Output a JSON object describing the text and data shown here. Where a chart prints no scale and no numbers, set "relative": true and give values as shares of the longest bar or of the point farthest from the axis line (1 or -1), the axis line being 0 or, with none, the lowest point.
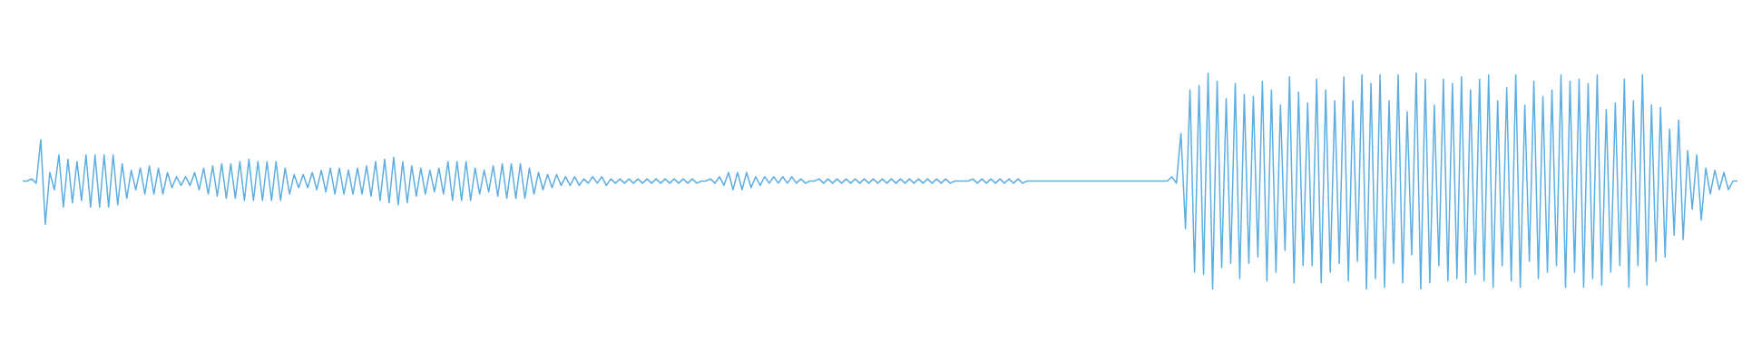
{
  "chart_data": {
    "type": "line",
    "relative": true,
    "color": "#5dade2",
    "categories": [
      null,
      null,
      null,
      null,
      null,
      null,
      null,
      null,
      null,
      null,
      null,
      null,
      null,
      null,
      null,
      null,
      null,
      null,
      null,
      null,
      null,
      null,
      null,
      null,
      null,
      null,
      null,
      null,
      null,
      null,
      null,
      null,
      null,
      null,
      null,
      null,
      null,
      null,
      null,
      null,
      null,
      null,
      null,
      null,
      null,
      null,
      null,
      null,
      null,
      null,
      null,
      null,
      null,
      null,
      null,
      null,
      null,
      null,
      null,
      null,
      null,
      null,
      null,
      null,
      null,
      null,
      null,
      null,
      null,
      null,
      null,
      null,
      null,
      null,
      null,
      null,
      null,
      null,
      null,
      null,
      null,
      null,
      null,
      null,
      null,
      null,
      null,
      null,
      null,
      null,
      null,
      null,
      null,
      null,
      null,
      null,
      null,
      null,
      null,
      null,
      null,
      null,
      null,
      null,
      null,
      null,
      null,
      null,
      null,
      null,
      null,
      null,
      null,
      null,
      null,
      null,
      null,
      null,
      null,
      null,
      null,
      null,
      null,
      null,
      null,
      null,
      null,
      null,
      null,
      null,
      null,
      null,
      null,
      null,
      null,
      null,
      null,
      null,
      null,
      null,
      null,
      null,
      null,
      null,
      null,
      null,
      null,
      null,
      null,
      null,
      null,
      null,
      null,
      null,
      null,
      null,
      null,
      null,
      null,
      null,
      null,
      null,
      null,
      null,
      null,
      null,
      null,
      null,
      null,
      null,
      null,
      null,
      null,
      null,
      null,
      null,
      null,
      null,
      null,
      null,
      null,
      null,
      null,
      null,
      null,
      null,
      null,
      null,
      null,
      null,
      null,
      null,
      null,
      null,
      null,
      null,
      null,
      null,
      null,
      null,
      null,
      null,
      null,
      null,
      null,
      null,
      null,
      null,
      null,
      null,
      null,
      null,
      null,
      null,
      null,
      null,
      null,
      null,
      null,
      null,
      null,
      null,
      null,
      null,
      null,
      null,
      null,
      null,
      null,
      null,
      null,
      null,
      null,
      null,
      null,
      null,
      null,
      null,
      null,
      null,
      null,
      null,
      null,
      null,
      null,
      null,
      null,
      null,
      null,
      null,
      null,
      null,
      null,
      null,
      null,
      null,
      null,
      null,
      null,
      null,
      null,
      null,
      null,
      null,
      null,
      null,
      null,
      null,
      null,
      null,
      null,
      null,
      null,
      null,
      null,
      null,
      null,
      null,
      null,
      null,
      null,
      null,
      null,
      null,
      null,
      null,
      null,
      null,
      null,
      null,
      null,
      null,
      null,
      null,
      null,
      null,
      null,
      null,
      null,
      null,
      null,
      null,
      null,
      null,
      null,
      null,
      null,
      null,
      null,
      null,
      null,
      null,
      null,
      null,
      null,
      null,
      null,
      null,
      null,
      null,
      null,
      null,
      null,
      null,
      null,
      null,
      null,
      null,
      null,
      null,
      null,
      null,
      null,
      null,
      null,
      null,
      null,
      null,
      null,
      null,
      null,
      null,
      null,
      null,
      null,
      null,
      null,
      null,
      null,
      null,
      null,
      null,
      null,
      null,
      null,
      null,
      null,
      null,
      null,
      null,
      null,
      null,
      null,
      null,
      null,
      null,
      null,
      null,
      null,
      null,
      null,
      null,
      null,
      null,
      null,
      null,
      null,
      null,
      null,
      null
    ],
    "values": [
      0.5,
      0.5,
      0.51,
      0.49,
      0.69,
      0.3,
      0.54,
      0.46,
      0.62,
      0.38,
      0.6,
      0.4,
      0.59,
      0.41,
      0.62,
      0.38,
      0.62,
      0.38,
      0.62,
      0.38,
      0.62,
      0.39,
      0.58,
      0.42,
      0.55,
      0.46,
      0.56,
      0.44,
      0.57,
      0.44,
      0.56,
      0.44,
      0.54,
      0.47,
      0.52,
      0.48,
      0.52,
      0.48,
      0.54,
      0.46,
      0.56,
      0.44,
      0.57,
      0.43,
      0.58,
      0.42,
      0.58,
      0.42,
      0.59,
      0.41,
      0.6,
      0.41,
      0.59,
      0.41,
      0.59,
      0.41,
      0.59,
      0.41,
      0.56,
      0.44,
      0.53,
      0.47,
      0.53,
      0.47,
      0.54,
      0.46,
      0.55,
      0.45,
      0.56,
      0.44,
      0.56,
      0.44,
      0.55,
      0.44,
      0.56,
      0.44,
      0.57,
      0.43,
      0.59,
      0.41,
      0.6,
      0.4,
      0.61,
      0.39,
      0.59,
      0.4,
      0.57,
      0.43,
      0.56,
      0.44,
      0.55,
      0.45,
      0.56,
      0.44,
      0.59,
      0.41,
      0.59,
      0.41,
      0.59,
      0.41,
      0.56,
      0.44,
      0.55,
      0.45,
      0.57,
      0.43,
      0.58,
      0.42,
      0.58,
      0.42,
      0.58,
      0.42,
      0.56,
      0.44,
      0.54,
      0.46,
      0.53,
      0.47,
      0.53,
      0.48,
      0.52,
      0.48,
      0.52,
      0.48,
      0.51,
      0.49,
      0.52,
      0.49,
      0.52,
      0.48,
      0.51,
      0.49,
      0.51,
      0.49,
      0.51,
      0.49,
      0.51,
      0.49,
      0.51,
      0.49,
      0.51,
      0.49,
      0.51,
      0.49,
      0.51,
      0.49,
      0.51,
      0.49,
      0.51,
      0.49,
      0.5,
      0.5,
      0.51,
      0.49,
      0.52,
      0.48,
      0.54,
      0.46,
      0.54,
      0.46,
      0.54,
      0.47,
      0.52,
      0.48,
      0.52,
      0.49,
      0.52,
      0.49,
      0.52,
      0.49,
      0.52,
      0.49,
      0.51,
      0.49,
      0.5,
      0.5,
      0.51,
      0.49,
      0.51,
      0.49,
      0.51,
      0.49,
      0.51,
      0.49,
      0.51,
      0.49,
      0.51,
      0.49,
      0.51,
      0.49,
      0.51,
      0.49,
      0.51,
      0.49,
      0.51,
      0.49,
      0.51,
      0.49,
      0.51,
      0.49,
      0.51,
      0.49,
      0.51,
      0.49,
      0.51,
      0.49,
      0.5,
      0.5,
      0.5,
      0.5,
      0.51,
      0.49,
      0.51,
      0.49,
      0.51,
      0.49,
      0.51,
      0.49,
      0.51,
      0.49,
      0.51,
      0.49,
      0.5,
      0.5,
      0.5,
      0.5,
      0.5,
      0.5,
      0.5,
      0.5,
      0.5,
      0.5,
      0.5,
      0.5,
      0.5,
      0.5,
      0.5,
      0.5,
      0.5,
      0.5,
      0.5,
      0.5,
      0.5,
      0.5,
      0.5,
      0.5,
      0.5,
      0.5,
      0.5,
      0.5,
      0.5,
      0.5,
      0.5,
      0.5,
      0.52,
      0.49,
      0.72,
      0.28,
      0.92,
      0.08,
      0.94,
      0.07,
      1.0,
      0.0,
      0.96,
      0.1,
      0.88,
      0.12,
      0.95,
      0.05,
      0.9,
      0.12,
      0.89,
      0.15,
      0.96,
      0.04,
      0.92,
      0.08,
      0.85,
      0.18,
      0.98,
      0.03,
      0.91,
      0.11,
      0.86,
      0.11,
      0.97,
      0.03,
      0.92,
      0.08,
      0.87,
      0.12,
      0.98,
      0.04,
      0.87,
      0.13,
      0.99,
      0.0,
      0.95,
      0.05,
      0.99,
      0.01,
      0.87,
      0.12,
      0.99,
      0.03,
      0.82,
      0.16,
      1.0,
      0.0,
      0.97,
      0.03,
      0.85,
      0.11,
      0.97,
      0.04,
      0.95,
      0.05,
      0.98,
      0.03,
      0.92,
      0.07,
      0.97,
      0.04,
      0.99,
      0.01,
      0.87,
      0.11,
      0.93,
      0.04,
      0.99,
      0.01,
      0.85,
      0.13,
      0.96,
      0.05,
      0.89,
      0.08,
      0.92,
      0.11,
      0.99,
      0.01,
      0.96,
      0.08,
      0.97,
      0.01,
      0.95,
      0.05,
      0.99,
      0.02,
      0.83,
      0.08,
      0.86,
      0.11,
      0.97,
      0.01,
      0.87,
      0.11,
      0.99,
      0.02,
      0.85,
      0.13,
      0.84,
      0.15,
      0.74,
      0.25,
      0.78,
      0.23,
      0.64,
      0.37,
      0.62,
      0.32,
      0.56,
      0.44,
      0.55,
      0.46,
      0.54,
      0.46,
      0.5,
      0.5
    ]
  }
}
